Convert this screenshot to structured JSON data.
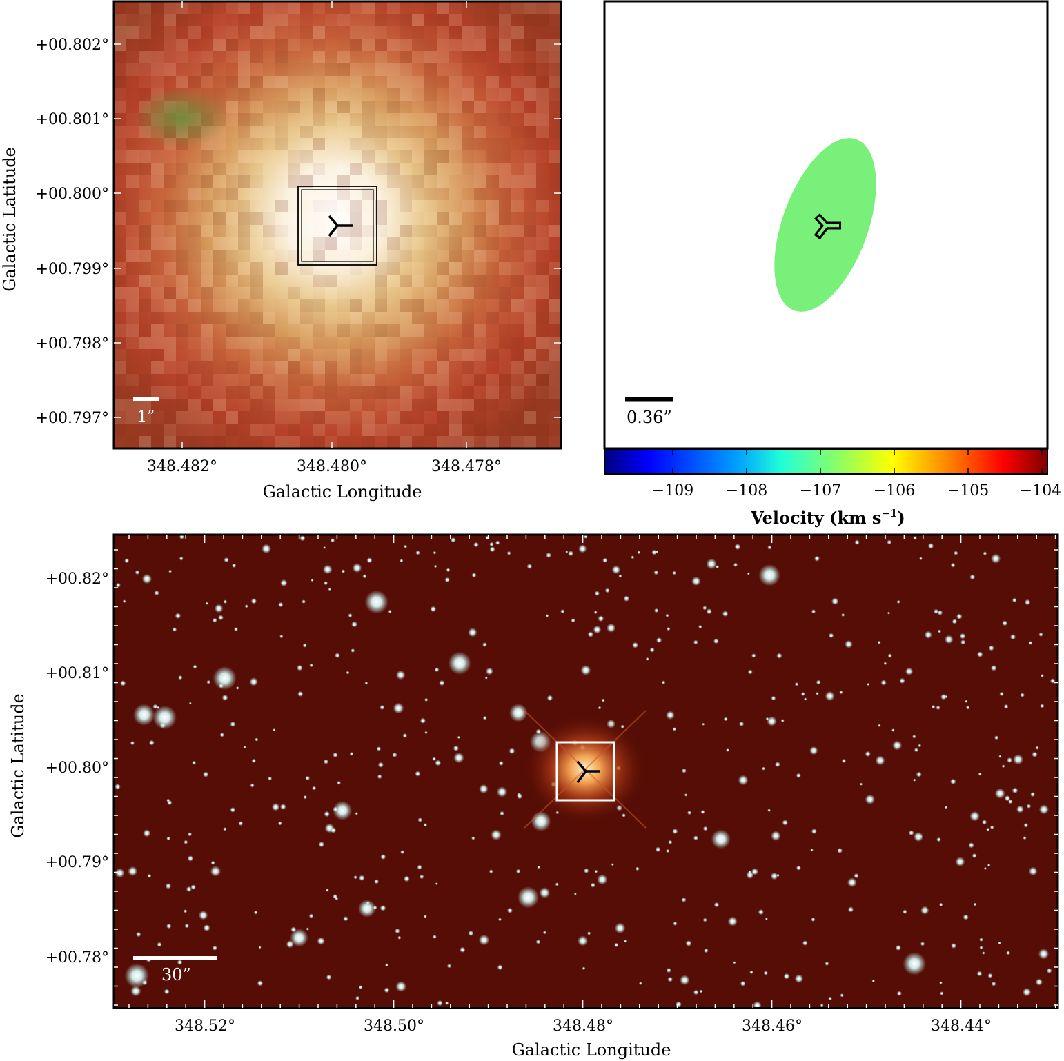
{
  "top_left_panel": {
    "x_axis_label": "Galactic Longitude",
    "y_axis_label": "Galactic Latitude",
    "x_ticks": [
      "348.482°",
      "348.480°",
      "348.478°"
    ],
    "y_ticks": [
      "+00.802°",
      "+00.801°",
      "+00.800°",
      "+00.799°",
      "+00.798°",
      "+00.797°"
    ],
    "scale_bar_label": "1”",
    "image_description_colors": {
      "center": "#fbf7ec",
      "mid": "#d8a768",
      "outer": "#b9472c",
      "green_patch": "#7a8a3c"
    }
  },
  "top_right_panel": {
    "scale_bar_label": "0.36”",
    "ellipse_color": "#79f07a",
    "colorbar": {
      "label": "Velocity (km s",
      "label_superscript": "−1",
      "label_close": ")",
      "ticks": [
        "−109",
        "−108",
        "−107",
        "−106",
        "−105",
        "−104"
      ],
      "gradient": [
        "#000080",
        "#0000ff",
        "#0080ff",
        "#00e5ff",
        "#7dff7a",
        "#ffff00",
        "#ff8000",
        "#ff0000",
        "#800000"
      ]
    }
  },
  "bottom_panel": {
    "x_axis_label": "Galactic Longitude",
    "y_axis_label": "Galactic Latitude",
    "x_ticks": [
      "348.52°",
      "348.50°",
      "348.48°",
      "348.46°",
      "348.44°"
    ],
    "y_ticks": [
      "+00.82°",
      "+00.81°",
      "+00.80°",
      "+00.79°",
      "+00.78°"
    ],
    "scale_bar_label": "30”",
    "background_color": "#4a0a04"
  }
}
